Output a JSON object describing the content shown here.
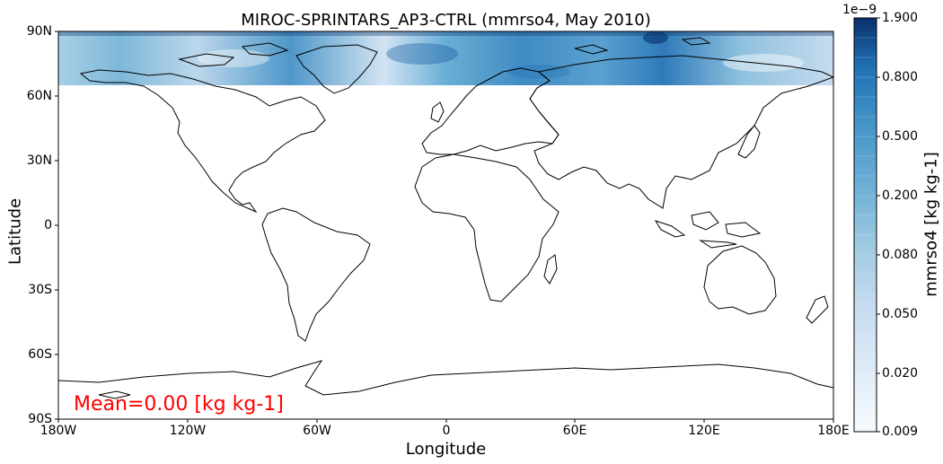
{
  "title": "MIROC-SPRINTARS_AP3-CTRL (mmrso4, May 2010)",
  "axes": {
    "xlabel": "Longitude",
    "ylabel": "Latitude",
    "xticks": [
      "180W",
      "120W",
      "60W",
      "0",
      "60E",
      "120E",
      "180E"
    ],
    "yticks": [
      "90N",
      "60N",
      "30N",
      "0",
      "30S",
      "60S",
      "90S"
    ]
  },
  "annotation": "Mean=0.00 [kg kg-1]",
  "colorbar": {
    "label": "mmrso4 [kg kg-1]",
    "exponent": "1e−9",
    "ticks": [
      "1.900",
      "0.800",
      "0.500",
      "0.200",
      "0.080",
      "0.050",
      "0.020",
      "0.009"
    ],
    "colormap": "Blues",
    "levels": 21
  },
  "map": {
    "data_extent_lat": [
      65,
      90
    ],
    "colors": {
      "light": "#f7fbff",
      "mid": "#6aaed6",
      "dark": "#08306b"
    }
  }
}
